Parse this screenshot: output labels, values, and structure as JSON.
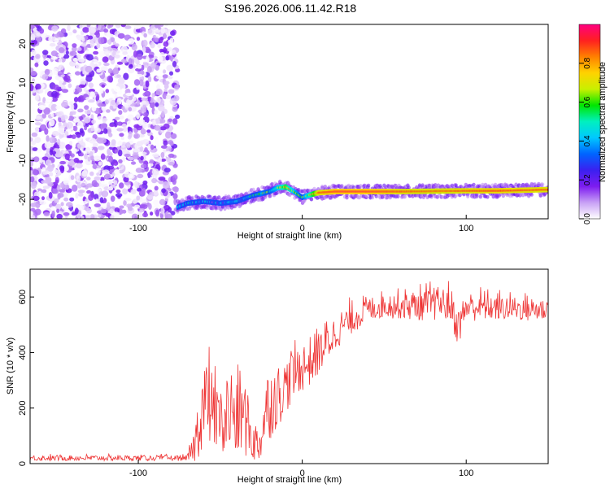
{
  "figure_title": "S196.2026.006.11.42.R18",
  "chart_data": [
    {
      "type": "heatmap",
      "title": "",
      "xlabel": "Height of straight line (km)",
      "ylabel": "Frequency (Hz)",
      "xlim": [
        -166,
        150
      ],
      "ylim": [
        -25,
        25
      ],
      "xticks": [
        -100,
        0,
        100
      ],
      "yticks": [
        -20,
        -10,
        0,
        10,
        20
      ],
      "colorbar": {
        "label": "Normalized spectral amplitude",
        "range": [
          0,
          1
        ],
        "ticks": [
          0.0,
          0.2,
          0.4,
          0.6,
          0.8
        ],
        "tick_labels": [
          "0.0",
          "0.2",
          "0.4",
          "0.6",
          "0.8"
        ],
        "colors": [
          "#ffffff",
          "#c8a0f5",
          "#7d1cf0",
          "#3b20f0",
          "#0064ff",
          "#00c8ff",
          "#00f0c0",
          "#00e600",
          "#c8f000",
          "#ffd200",
          "#ff8000",
          "#ff2020",
          "#ff0080"
        ]
      },
      "noise_region_x": [
        -166,
        -76
      ],
      "ridge": {
        "x": [
          -76,
          -70,
          -60,
          -50,
          -40,
          -30,
          -25,
          -20,
          -15,
          -10,
          -5,
          0,
          5,
          10,
          20,
          40,
          60,
          80,
          100,
          120,
          140,
          150
        ],
        "y": [
          -22,
          -21,
          -20.5,
          -21,
          -20.5,
          -19,
          -18.5,
          -18,
          -17,
          -16.8,
          -18,
          -19.5,
          -18.8,
          -18.3,
          -18,
          -18,
          -18,
          -17.9,
          -17.8,
          -17.8,
          -17.6,
          -17.5
        ],
        "amplitude": [
          0.3,
          0.35,
          0.32,
          0.3,
          0.33,
          0.45,
          0.55,
          0.5,
          0.6,
          0.75,
          0.6,
          0.5,
          0.7,
          0.9,
          0.95,
          0.95,
          0.9,
          0.88,
          0.9,
          0.92,
          0.9,
          0.9
        ]
      }
    },
    {
      "type": "line",
      "title": "",
      "xlabel": "Height of straight line (km)",
      "ylabel": "SNR (10 * v/v)",
      "xlim": [
        -166,
        150
      ],
      "ylim": [
        0,
        700
      ],
      "xticks": [
        -100,
        0,
        100
      ],
      "yticks": [
        0,
        200,
        400,
        600
      ],
      "line_color": "#ee3333",
      "envelope": {
        "x": [
          -166,
          -70,
          -66,
          -60,
          -55,
          -48,
          -45,
          -40,
          -36,
          -30,
          -26,
          -22,
          -18,
          -12,
          -8,
          -4,
          0,
          5,
          10,
          15,
          20,
          25,
          30,
          40,
          50,
          60,
          70,
          80,
          90,
          95,
          100,
          110,
          120,
          130,
          140,
          150
        ],
        "mean": [
          20,
          20,
          60,
          230,
          190,
          130,
          200,
          160,
          180,
          80,
          70,
          200,
          230,
          260,
          300,
          330,
          350,
          360,
          400,
          430,
          470,
          500,
          520,
          555,
          570,
          570,
          570,
          575,
          575,
          490,
          565,
          565,
          560,
          560,
          555,
          555
        ],
        "amp": [
          10,
          10,
          60,
          180,
          140,
          110,
          180,
          160,
          150,
          80,
          70,
          130,
          130,
          100,
          100,
          90,
          90,
          80,
          80,
          70,
          65,
          60,
          55,
          45,
          45,
          50,
          55,
          60,
          60,
          70,
          55,
          50,
          45,
          45,
          45,
          45
        ]
      }
    }
  ]
}
